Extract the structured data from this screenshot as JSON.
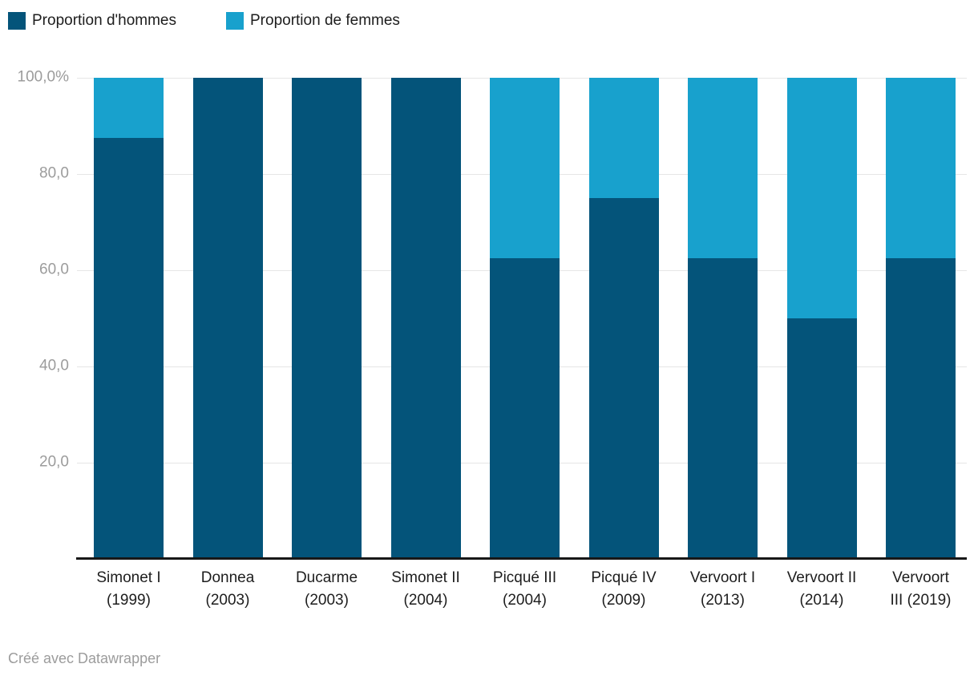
{
  "legend": {
    "items": [
      {
        "label": "Proportion d'hommes",
        "color": "#04547a"
      },
      {
        "label": "Proportion de femmes",
        "color": "#18a1cd"
      }
    ]
  },
  "chart_data": {
    "type": "bar",
    "stacked": true,
    "unit": "%",
    "categories": [
      "Simonet I\n(1999)",
      "Donnea\n(2003)",
      "Ducarme\n(2003)",
      "Simonet II\n(2004)",
      "Picqué III\n(2004)",
      "Picqué IV\n(2009)",
      "Vervoort I\n(2013)",
      "Vervoort II\n(2014)",
      "Vervoort\nIII (2019)"
    ],
    "series": [
      {
        "name": "Proportion d'hommes",
        "color": "#04547a",
        "values": [
          87.5,
          100,
          100,
          100,
          62.5,
          75,
          62.5,
          50,
          62.5
        ]
      },
      {
        "name": "Proportion de femmes",
        "color": "#18a1cd",
        "values": [
          12.5,
          0,
          0,
          0,
          37.5,
          25,
          37.5,
          50,
          37.5
        ]
      }
    ],
    "ylim": [
      0,
      100
    ],
    "yticks": [
      {
        "value": 20,
        "label": "20,0"
      },
      {
        "value": 40,
        "label": "40,0"
      },
      {
        "value": 60,
        "label": "60,0"
      },
      {
        "value": 80,
        "label": "80,0"
      },
      {
        "value": 100,
        "label": "100,0%"
      }
    ],
    "grid": true,
    "legend_position": "top"
  },
  "footer": {
    "attribution": "Créé avec Datawrapper"
  },
  "colors": {
    "grid": "#e6e6e6",
    "axis": "#181818",
    "tick_label": "#9c9c9c",
    "category_label": "#1d1d1d",
    "background": "#ffffff"
  }
}
